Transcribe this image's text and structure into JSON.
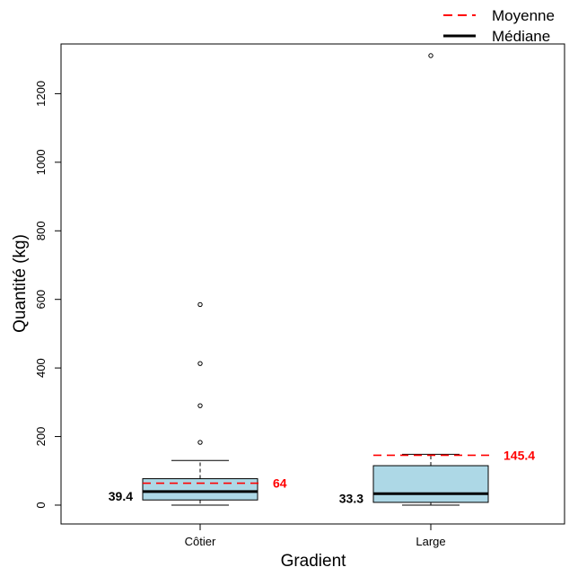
{
  "chart_data": {
    "type": "boxplot",
    "xlabel": "Gradient",
    "ylabel": "Quantité (kg)",
    "ylim": [
      -55,
      1345
    ],
    "yticks": [
      0,
      200,
      400,
      600,
      800,
      1000,
      1200
    ],
    "grid": false,
    "legend_position": "top-right",
    "legend": [
      {
        "label": "Moyenne",
        "style": "dashed",
        "color": "#ff0000"
      },
      {
        "label": "Médiane",
        "style": "solid",
        "color": "#000000"
      }
    ],
    "box_fill": "#add8e6",
    "categories": [
      "Côtier",
      "Large"
    ],
    "boxes": [
      {
        "name": "Côtier",
        "min": 0,
        "q1": 15,
        "median": 39.4,
        "q3": 77,
        "max": 130,
        "mean": 64,
        "median_label": "39.4",
        "mean_label": "64",
        "outliers": [
          183,
          290,
          413,
          585
        ]
      },
      {
        "name": "Large",
        "min": 0,
        "q1": 8,
        "median": 33.3,
        "q3": 115,
        "max": 148,
        "mean": 145.4,
        "median_label": "33.3",
        "mean_label": "145.4",
        "outliers": [
          1311
        ]
      }
    ]
  }
}
